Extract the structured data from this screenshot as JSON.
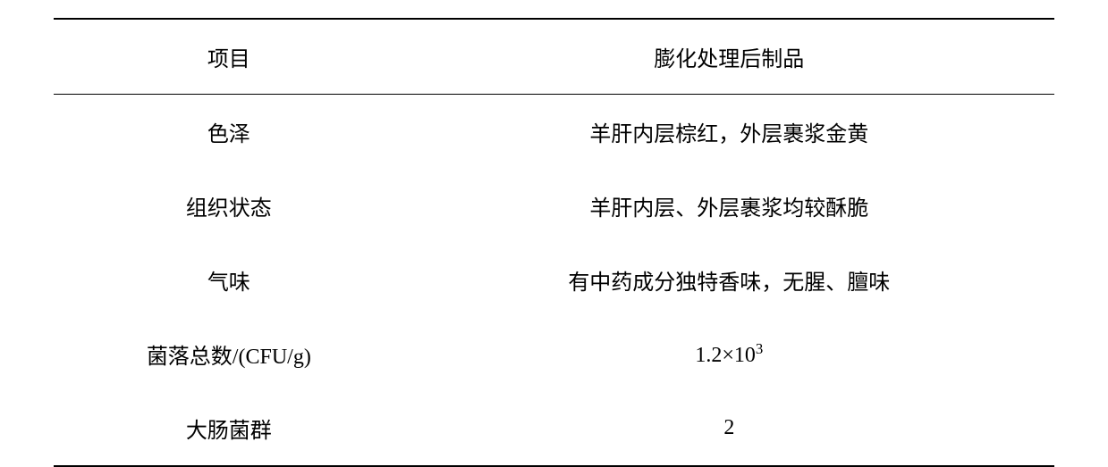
{
  "table": {
    "headers": {
      "item": "项目",
      "value": "膨化处理后制品"
    },
    "rows": [
      {
        "item": "色泽",
        "value": "羊肝内层棕红，外层裹浆金黄"
      },
      {
        "item": "组织状态",
        "value": "羊肝内层、外层裹浆均较酥脆"
      },
      {
        "item": "气味",
        "value": "有中药成分独特香味，无腥、膻味"
      },
      {
        "item": "菌落总数/(CFU/g)",
        "value": "1.2×10³",
        "value_html": "1.2×10<sup>3</sup>"
      },
      {
        "item": "大肠菌群",
        "value": "2"
      }
    ],
    "style": {
      "border_color": "#000000",
      "top_border_width": 2,
      "header_border_width": 1.5,
      "bottom_border_width": 2,
      "background_color": "#ffffff",
      "font_family": "SimSun",
      "header_fontsize": 24,
      "cell_fontsize": 24,
      "row_padding_vertical": 24,
      "text_align": "center"
    }
  }
}
